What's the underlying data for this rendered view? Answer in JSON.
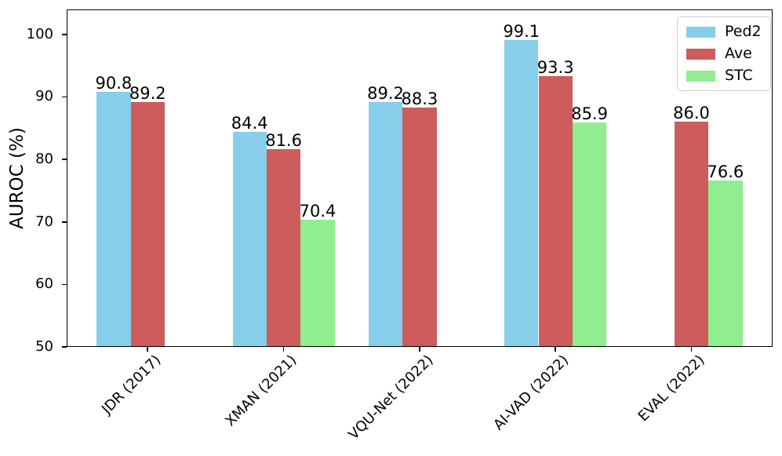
{
  "chart_data": {
    "type": "bar",
    "title": "",
    "xlabel": "",
    "ylabel": "AUROC (%)",
    "categories": [
      "JDR (2017)",
      "XMAN (2021)",
      "VQU-Net (2022)",
      "AI-VAD (2022)",
      "EVAL (2022)"
    ],
    "series": [
      {
        "name": "Ped2",
        "color": "#87CEEB",
        "values": [
          90.8,
          84.4,
          89.2,
          99.1,
          null
        ]
      },
      {
        "name": "Ave",
        "color": "#CD5C5C",
        "values": [
          89.2,
          81.6,
          88.3,
          93.3,
          86.0
        ]
      },
      {
        "name": "STC",
        "color": "#90EE90",
        "values": [
          null,
          70.4,
          null,
          85.9,
          76.6
        ]
      }
    ],
    "ylim": [
      50,
      104
    ],
    "yticks": [
      50,
      60,
      70,
      80,
      90,
      100
    ],
    "bar_value_labels": true,
    "value_label_decimals": 1,
    "x_tick_rotation_deg": 45,
    "grid": false,
    "legend_position": "upper right",
    "axis_color": "#000000",
    "text_color": "#000000",
    "background_color": "#ffffff"
  }
}
